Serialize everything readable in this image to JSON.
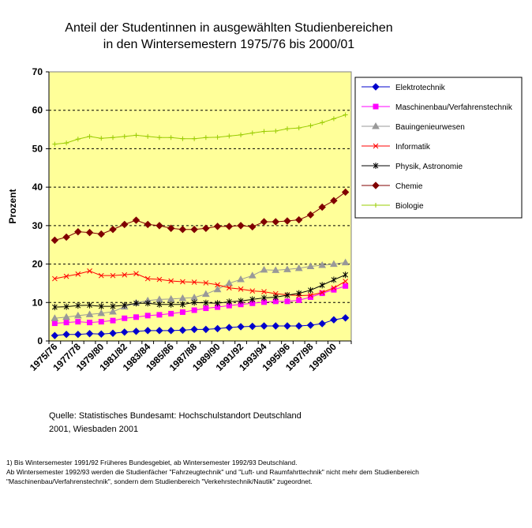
{
  "chart_data": {
    "type": "line",
    "title": [
      "Anteil der Studentinnen in ausgewählten Studienbereichen",
      "in den Wintersemestern 1975/76 bis 2000/01"
    ],
    "ylabel": "Prozent",
    "ylim": [
      0,
      70
    ],
    "yticks": [
      0,
      10,
      20,
      30,
      40,
      50,
      60,
      70
    ],
    "grid": "horizontal dashed",
    "legend_position": "right",
    "plot_background": "#ffff99",
    "categories": [
      "1975/76",
      "1976/77",
      "1977/78",
      "1978/79",
      "1979/80",
      "1980/81",
      "1981/82",
      "1982/83",
      "1983/84",
      "1984/85",
      "1985/86",
      "1986/87",
      "1987/88",
      "1988/89",
      "1989/90",
      "1990/91",
      "1991/92",
      "1992/93",
      "1993/94",
      "1994/95",
      "1995/96",
      "1996/97",
      "1997/98",
      "1998/99",
      "1999/00",
      "2000/01"
    ],
    "tick_labels": [
      "1975/76",
      "1977/78",
      "1979/80",
      "1981/82",
      "1983/84",
      "1985/86",
      "1987/88",
      "1989/90",
      "1991/92",
      "1993/94",
      "1995/96",
      "1997/98",
      "1999/00"
    ],
    "series": [
      {
        "name": "Elektrotechnik",
        "color": "#0000cc",
        "marker": "diamond",
        "values": [
          1.4,
          1.7,
          1.7,
          1.9,
          1.8,
          2.0,
          2.3,
          2.5,
          2.7,
          2.7,
          2.7,
          2.8,
          3.0,
          3.0,
          3.2,
          3.5,
          3.7,
          3.8,
          3.9,
          3.9,
          3.9,
          3.9,
          4.1,
          4.5,
          5.5,
          6.0
        ]
      },
      {
        "name": "Maschinenbau/Verfahrenstechnik",
        "color": "#ff00ff",
        "marker": "square",
        "values": [
          4.6,
          4.8,
          5.0,
          4.8,
          5.0,
          5.3,
          5.9,
          6.2,
          6.6,
          6.8,
          7.1,
          7.5,
          8.0,
          8.5,
          8.8,
          9.2,
          9.5,
          9.8,
          10.1,
          10.3,
          10.3,
          10.6,
          11.4,
          12.4,
          13.3,
          14.3
        ]
      },
      {
        "name": "Bauingenieurwesen",
        "color": "#999999",
        "marker": "triangle",
        "values": [
          5.9,
          6.2,
          6.6,
          6.9,
          7.2,
          7.6,
          8.9,
          9.9,
          10.5,
          10.8,
          10.9,
          11.1,
          11.3,
          12.2,
          13.4,
          15.0,
          16.0,
          17.0,
          18.5,
          18.4,
          18.6,
          18.9,
          19.4,
          19.7,
          20.0,
          20.4
        ]
      },
      {
        "name": "Informatik",
        "color": "#ff0000",
        "marker": "x",
        "values": [
          16.2,
          16.8,
          17.4,
          18.2,
          17.0,
          17.0,
          17.2,
          17.5,
          16.2,
          16.0,
          15.6,
          15.4,
          15.3,
          15.1,
          14.6,
          13.8,
          13.5,
          13.0,
          12.8,
          12.3,
          12.0,
          11.8,
          11.9,
          12.6,
          13.8,
          15.5
        ]
      },
      {
        "name": "Physik, Astronomie",
        "color": "#000000",
        "marker": "star",
        "values": [
          8.8,
          8.9,
          9.2,
          9.3,
          9.0,
          9.0,
          9.3,
          9.8,
          9.8,
          9.5,
          9.5,
          9.5,
          10.0,
          9.9,
          9.8,
          10.2,
          10.4,
          10.8,
          11.2,
          11.4,
          11.9,
          12.4,
          13.2,
          14.5,
          15.9,
          17.2
        ]
      },
      {
        "name": "Chemie",
        "color": "#800000",
        "marker": "diamond",
        "values": [
          26.2,
          27.0,
          28.4,
          28.2,
          27.8,
          29.0,
          30.3,
          31.4,
          30.3,
          30.0,
          29.3,
          29.0,
          29.0,
          29.3,
          29.8,
          29.8,
          30.0,
          29.7,
          31.0,
          31.0,
          31.2,
          31.5,
          32.8,
          34.8,
          36.5,
          38.7
        ]
      },
      {
        "name": "Biologie",
        "color": "#99cc00",
        "marker": "plus",
        "values": [
          51.2,
          51.5,
          52.5,
          53.2,
          52.7,
          52.9,
          53.2,
          53.5,
          53.2,
          52.9,
          52.9,
          52.6,
          52.6,
          52.9,
          53.0,
          53.3,
          53.6,
          54.1,
          54.5,
          54.6,
          55.2,
          55.4,
          56.0,
          56.8,
          57.8,
          58.8
        ]
      }
    ]
  },
  "source_lines": [
    "Quelle: Statistisches Bundesamt: Hochschulstandort Deutschland",
    "2001, Wiesbaden 2001"
  ],
  "footnote_lines": [
    "1) Bis Wintersemester 1991/92 Früheres Bundesgebiet, ab Wintersemester 1992/93 Deutschland.",
    "Ab Wintersemester 1992/93 werden die Studienfächer  \"Fahrzeugtechnik\" und \"Luft- und Raumfahrttechnik\" nicht mehr dem Studienbereich",
    "\"Maschinenbau/Verfahrenstechnik\", sondern dem Studienbereich \"Verkehrstechnik/Nautik\" zugeordnet."
  ]
}
